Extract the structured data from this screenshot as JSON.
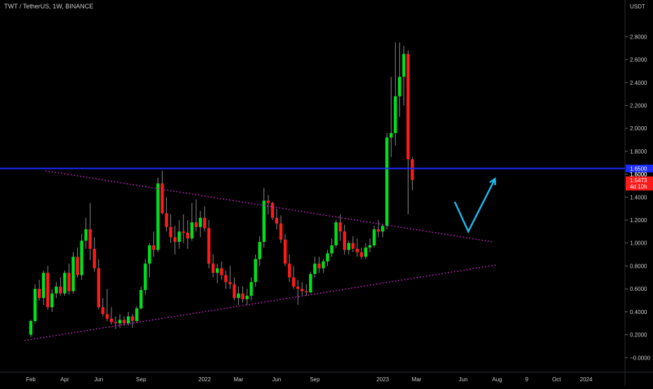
{
  "header": {
    "title": "TWT / TetherUS, 1W, BINANCE"
  },
  "colors": {
    "background": "#000000",
    "up": "#00e11d",
    "down": "#ff1a1a",
    "resistance_line": "#1a2cff",
    "trendline": "#d020d0",
    "arrow": "#1fb6e8",
    "current_price_badge": "#ff1a1a",
    "level_badge": "#1a2cff"
  },
  "chart_data": {
    "type": "candlestick",
    "title": "TWT / TetherUS, 1W, BINANCE",
    "y_axis": {
      "unit": "USDT",
      "ylim": [
        -0.09,
        3.12
      ],
      "ticks": [
        "2.8000",
        "2.6000",
        "2.4000",
        "2.2000",
        "2.0000",
        "1.8000",
        "1.6000",
        "1.4000",
        "1.2000",
        "1.0000",
        "0.8000",
        "0.6000",
        "0.4000",
        "0.2000",
        "−0.0000"
      ],
      "tick_values": [
        2.8,
        2.6,
        2.4,
        2.2,
        2.0,
        1.8,
        1.6,
        1.4,
        1.2,
        1.0,
        0.8,
        0.6,
        0.4,
        0.2,
        0.0
      ]
    },
    "x_axis": {
      "ticks": [
        "Feb",
        "Apr",
        "Jun",
        "Sep",
        "2022",
        "Mar",
        "Jun",
        "Sep",
        "2023",
        "Mar",
        "Jun",
        "Aug",
        "9",
        "Oct",
        "2024"
      ],
      "tick_positions": [
        0,
        8,
        16,
        26,
        41,
        49,
        58,
        67,
        83,
        91,
        102,
        110,
        117,
        124,
        131
      ]
    },
    "candles": [
      [
        0.2,
        0.33,
        0.18,
        0.32
      ],
      [
        0.32,
        0.64,
        0.3,
        0.6
      ],
      [
        0.6,
        0.68,
        0.5,
        0.52
      ],
      [
        0.52,
        0.76,
        0.46,
        0.74
      ],
      [
        0.74,
        0.8,
        0.42,
        0.44
      ],
      [
        0.44,
        0.6,
        0.4,
        0.56
      ],
      [
        0.56,
        0.66,
        0.52,
        0.62
      ],
      [
        0.62,
        0.7,
        0.54,
        0.56
      ],
      [
        0.56,
        0.76,
        0.54,
        0.74
      ],
      [
        0.74,
        0.82,
        0.55,
        0.58
      ],
      [
        0.58,
        0.92,
        0.56,
        0.88
      ],
      [
        0.88,
        0.96,
        0.7,
        0.72
      ],
      [
        0.72,
        1.08,
        0.68,
        1.02
      ],
      [
        1.02,
        1.22,
        0.95,
        1.12
      ],
      [
        1.12,
        1.35,
        0.85,
        0.95
      ],
      [
        0.95,
        1.05,
        0.75,
        0.78
      ],
      [
        0.78,
        0.86,
        0.42,
        0.44
      ],
      [
        0.44,
        0.52,
        0.36,
        0.38
      ],
      [
        0.38,
        0.6,
        0.32,
        0.34
      ],
      [
        0.34,
        0.44,
        0.29,
        0.31
      ],
      [
        0.31,
        0.36,
        0.25,
        0.3
      ],
      [
        0.3,
        0.38,
        0.26,
        0.33
      ],
      [
        0.33,
        0.36,
        0.28,
        0.3
      ],
      [
        0.3,
        0.4,
        0.28,
        0.36
      ],
      [
        0.36,
        0.38,
        0.26,
        0.32
      ],
      [
        0.32,
        0.45,
        0.3,
        0.43
      ],
      [
        0.43,
        0.62,
        0.42,
        0.59
      ],
      [
        0.59,
        0.86,
        0.55,
        0.82
      ],
      [
        0.82,
        1.0,
        0.7,
        0.98
      ],
      [
        0.98,
        1.1,
        0.88,
        0.94
      ],
      [
        0.94,
        1.57,
        0.92,
        1.52
      ],
      [
        1.52,
        1.63,
        1.25,
        1.26
      ],
      [
        1.26,
        1.4,
        1.1,
        1.14
      ],
      [
        1.14,
        1.25,
        1.0,
        1.05
      ],
      [
        1.05,
        1.15,
        0.9,
        1.01
      ],
      [
        1.01,
        1.2,
        0.95,
        1.1
      ],
      [
        1.1,
        1.25,
        1.0,
        1.09
      ],
      [
        1.09,
        1.2,
        0.95,
        1.04
      ],
      [
        1.04,
        1.35,
        1.02,
        1.18
      ],
      [
        1.18,
        1.38,
        1.1,
        1.14
      ],
      [
        1.14,
        1.28,
        1.05,
        1.22
      ],
      [
        1.22,
        1.32,
        1.1,
        1.13
      ],
      [
        1.13,
        1.2,
        0.78,
        0.82
      ],
      [
        0.82,
        0.9,
        0.7,
        0.74
      ],
      [
        0.74,
        0.82,
        0.65,
        0.78
      ],
      [
        0.78,
        0.84,
        0.68,
        0.72
      ],
      [
        0.72,
        0.76,
        0.6,
        0.66
      ],
      [
        0.66,
        0.8,
        0.6,
        0.64
      ],
      [
        0.64,
        0.7,
        0.5,
        0.52
      ],
      [
        0.52,
        0.62,
        0.46,
        0.56
      ],
      [
        0.56,
        0.62,
        0.48,
        0.51
      ],
      [
        0.51,
        0.6,
        0.46,
        0.54
      ],
      [
        0.54,
        0.7,
        0.5,
        0.66
      ],
      [
        0.66,
        0.9,
        0.62,
        0.86
      ],
      [
        0.86,
        1.06,
        0.8,
        1.01
      ],
      [
        1.01,
        1.48,
        0.96,
        1.37
      ],
      [
        1.37,
        1.42,
        1.25,
        1.35
      ],
      [
        1.35,
        1.36,
        1.2,
        1.22
      ],
      [
        1.22,
        1.3,
        1.12,
        1.17
      ],
      [
        1.17,
        1.24,
        1.0,
        1.03
      ],
      [
        1.03,
        1.08,
        0.8,
        0.82
      ],
      [
        0.82,
        0.9,
        0.66,
        0.7
      ],
      [
        0.7,
        0.8,
        0.6,
        0.62
      ],
      [
        0.62,
        0.68,
        0.46,
        0.6
      ],
      [
        0.6,
        0.66,
        0.54,
        0.58
      ],
      [
        0.58,
        0.64,
        0.54,
        0.57
      ],
      [
        0.57,
        0.75,
        0.56,
        0.73
      ],
      [
        0.73,
        0.88,
        0.7,
        0.82
      ],
      [
        0.82,
        0.88,
        0.74,
        0.78
      ],
      [
        0.78,
        0.86,
        0.74,
        0.84
      ],
      [
        0.84,
        0.94,
        0.8,
        0.91
      ],
      [
        0.91,
        1.04,
        0.88,
        0.98
      ],
      [
        0.98,
        1.2,
        0.96,
        1.18
      ],
      [
        1.18,
        1.25,
        1.02,
        1.1
      ],
      [
        1.1,
        1.16,
        0.9,
        0.94
      ],
      [
        0.94,
        1.02,
        0.9,
        1.0
      ],
      [
        1.0,
        1.06,
        0.92,
        0.95
      ],
      [
        0.95,
        1.04,
        0.88,
        0.92
      ],
      [
        0.92,
        0.96,
        0.86,
        0.88
      ],
      [
        0.88,
        1.0,
        0.86,
        0.96
      ],
      [
        0.96,
        1.04,
        0.92,
        0.98
      ],
      [
        0.98,
        1.15,
        0.96,
        1.12
      ],
      [
        1.12,
        1.2,
        1.05,
        1.1
      ],
      [
        1.1,
        1.16,
        1.05,
        1.15
      ],
      [
        1.15,
        1.96,
        1.12,
        1.92
      ],
      [
        1.92,
        2.45,
        1.75,
        1.96
      ],
      [
        1.96,
        2.75,
        1.85,
        2.28
      ],
      [
        2.28,
        2.75,
        2.1,
        2.45
      ],
      [
        2.45,
        2.72,
        2.2,
        2.65
      ],
      [
        2.65,
        2.68,
        1.25,
        1.73
      ],
      [
        1.73,
        1.75,
        1.46,
        1.55
      ]
    ],
    "horizontal_line": {
      "value": 1.65,
      "label": "1.6500"
    },
    "price_labels": [
      {
        "text": "1.6000",
        "value": 1.6
      },
      {
        "text": "1.5473",
        "value": 1.5473,
        "sub": "4d 10h"
      }
    ],
    "trendlines": [
      {
        "name": "upper",
        "from": [
          3.5,
          1.63
        ],
        "to": [
          109,
          1.01
        ]
      },
      {
        "name": "lower",
        "from": [
          -1.5,
          0.15
        ],
        "to": [
          110,
          0.81
        ]
      }
    ],
    "projection_arrow": {
      "points": [
        [
          100,
          1.36
        ],
        [
          103.2,
          1.1
        ],
        [
          109.5,
          1.56
        ]
      ]
    }
  }
}
